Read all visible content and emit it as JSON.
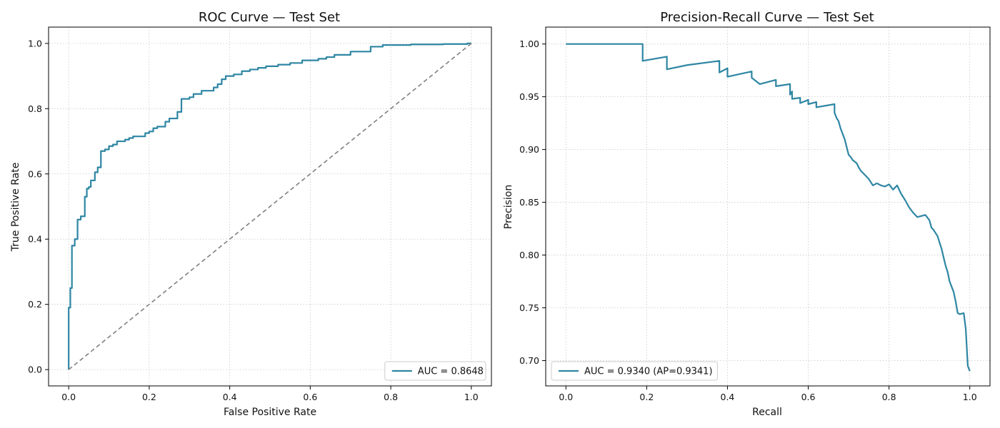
{
  "chart_data": [
    {
      "type": "line",
      "title": "ROC Curve — Test Set",
      "xlabel": "False Positive Rate",
      "ylabel": "True Positive Rate",
      "xlim": [
        -0.05,
        1.05
      ],
      "ylim": [
        -0.05,
        1.05
      ],
      "xticks": [
        "0.0",
        "0.2",
        "0.4",
        "0.6",
        "0.8",
        "1.0"
      ],
      "yticks": [
        "0.0",
        "0.2",
        "0.4",
        "0.6",
        "0.8",
        "1.0"
      ],
      "grid": true,
      "legend_position": "lower-right",
      "series": [
        {
          "name": "AUC = 0.8648",
          "color": "#2e86a3",
          "step": true,
          "x": [
            0.0,
            0.0,
            0.004,
            0.004,
            0.008,
            0.008,
            0.015,
            0.015,
            0.022,
            0.022,
            0.03,
            0.03,
            0.04,
            0.04,
            0.045,
            0.045,
            0.05,
            0.05,
            0.055,
            0.055,
            0.065,
            0.065,
            0.072,
            0.072,
            0.08,
            0.08,
            0.09,
            0.09,
            0.1,
            0.1,
            0.11,
            0.11,
            0.12,
            0.12,
            0.14,
            0.14,
            0.15,
            0.15,
            0.16,
            0.16,
            0.19,
            0.19,
            0.2,
            0.2,
            0.21,
            0.21,
            0.22,
            0.22,
            0.24,
            0.24,
            0.25,
            0.25,
            0.27,
            0.27,
            0.28,
            0.28,
            0.3,
            0.3,
            0.31,
            0.31,
            0.33,
            0.33,
            0.36,
            0.36,
            0.37,
            0.37,
            0.38,
            0.38,
            0.39,
            0.39,
            0.41,
            0.41,
            0.43,
            0.43,
            0.45,
            0.45,
            0.47,
            0.47,
            0.49,
            0.49,
            0.52,
            0.52,
            0.55,
            0.55,
            0.58,
            0.58,
            0.62,
            0.62,
            0.64,
            0.64,
            0.66,
            0.66,
            0.7,
            0.7,
            0.75,
            0.75,
            0.78,
            0.78,
            0.85,
            0.85,
            0.93,
            0.93,
            0.99,
            0.99,
            1.0,
            1.0
          ],
          "y": [
            0.0,
            0.19,
            0.19,
            0.25,
            0.25,
            0.38,
            0.38,
            0.4,
            0.4,
            0.46,
            0.46,
            0.47,
            0.47,
            0.53,
            0.53,
            0.555,
            0.555,
            0.56,
            0.56,
            0.58,
            0.58,
            0.605,
            0.605,
            0.62,
            0.62,
            0.67,
            0.67,
            0.675,
            0.675,
            0.685,
            0.685,
            0.69,
            0.69,
            0.7,
            0.7,
            0.705,
            0.705,
            0.71,
            0.71,
            0.715,
            0.715,
            0.725,
            0.725,
            0.73,
            0.73,
            0.74,
            0.74,
            0.745,
            0.745,
            0.76,
            0.76,
            0.77,
            0.77,
            0.79,
            0.79,
            0.83,
            0.83,
            0.835,
            0.835,
            0.845,
            0.845,
            0.855,
            0.855,
            0.865,
            0.865,
            0.875,
            0.875,
            0.89,
            0.89,
            0.9,
            0.9,
            0.905,
            0.905,
            0.915,
            0.915,
            0.92,
            0.92,
            0.925,
            0.925,
            0.93,
            0.93,
            0.935,
            0.935,
            0.94,
            0.94,
            0.948,
            0.948,
            0.953,
            0.953,
            0.958,
            0.958,
            0.965,
            0.965,
            0.975,
            0.975,
            0.99,
            0.99,
            0.995,
            0.995,
            0.997,
            0.997,
            0.998,
            0.998,
            1.0,
            1.0,
            1.0
          ]
        },
        {
          "name": "",
          "color": "#808080",
          "dashed": true,
          "x": [
            0.0,
            1.0
          ],
          "y": [
            0.0,
            1.0
          ]
        }
      ]
    },
    {
      "type": "line",
      "title": "Precision-Recall Curve — Test Set",
      "xlabel": "Recall",
      "ylabel": "Precision",
      "xlim": [
        -0.05,
        1.05
      ],
      "ylim": [
        0.676,
        1.016
      ],
      "xticks": [
        "0.0",
        "0.2",
        "0.4",
        "0.6",
        "0.8",
        "1.0"
      ],
      "yticks": [
        "0.70",
        "0.75",
        "0.80",
        "0.85",
        "0.90",
        "0.95",
        "1.00"
      ],
      "grid": true,
      "legend_position": "lower-left",
      "series": [
        {
          "name": "AUC = 0.9340 (AP=0.9341)",
          "color": "#2e86a3",
          "x": [
            0.0,
            0.19,
            0.19,
            0.25,
            0.25,
            0.3,
            0.38,
            0.38,
            0.4,
            0.4,
            0.46,
            0.46,
            0.48,
            0.52,
            0.52,
            0.555,
            0.555,
            0.56,
            0.56,
            0.58,
            0.58,
            0.6,
            0.6,
            0.62,
            0.62,
            0.665,
            0.665,
            0.67,
            0.675,
            0.68,
            0.685,
            0.69,
            0.7,
            0.705,
            0.71,
            0.72,
            0.725,
            0.73,
            0.74,
            0.75,
            0.76,
            0.77,
            0.78,
            0.79,
            0.8,
            0.81,
            0.82,
            0.83,
            0.84,
            0.85,
            0.86,
            0.87,
            0.88,
            0.89,
            0.9,
            0.905,
            0.91,
            0.92,
            0.925,
            0.93,
            0.935,
            0.94,
            0.945,
            0.95,
            0.955,
            0.96,
            0.965,
            0.97,
            0.975,
            0.985,
            0.99,
            0.995,
            1.0
          ],
          "y": [
            1.0,
            1.0,
            0.984,
            0.988,
            0.976,
            0.98,
            0.984,
            0.973,
            0.977,
            0.969,
            0.974,
            0.968,
            0.962,
            0.966,
            0.96,
            0.962,
            0.952,
            0.955,
            0.948,
            0.949,
            0.944,
            0.947,
            0.943,
            0.945,
            0.94,
            0.943,
            0.935,
            0.93,
            0.927,
            0.92,
            0.915,
            0.91,
            0.895,
            0.893,
            0.89,
            0.887,
            0.883,
            0.88,
            0.876,
            0.872,
            0.866,
            0.868,
            0.866,
            0.865,
            0.867,
            0.862,
            0.866,
            0.858,
            0.852,
            0.845,
            0.84,
            0.836,
            0.837,
            0.838,
            0.833,
            0.826,
            0.824,
            0.818,
            0.812,
            0.806,
            0.798,
            0.79,
            0.784,
            0.775,
            0.77,
            0.765,
            0.756,
            0.745,
            0.744,
            0.745,
            0.73,
            0.695,
            0.69
          ]
        }
      ]
    }
  ]
}
